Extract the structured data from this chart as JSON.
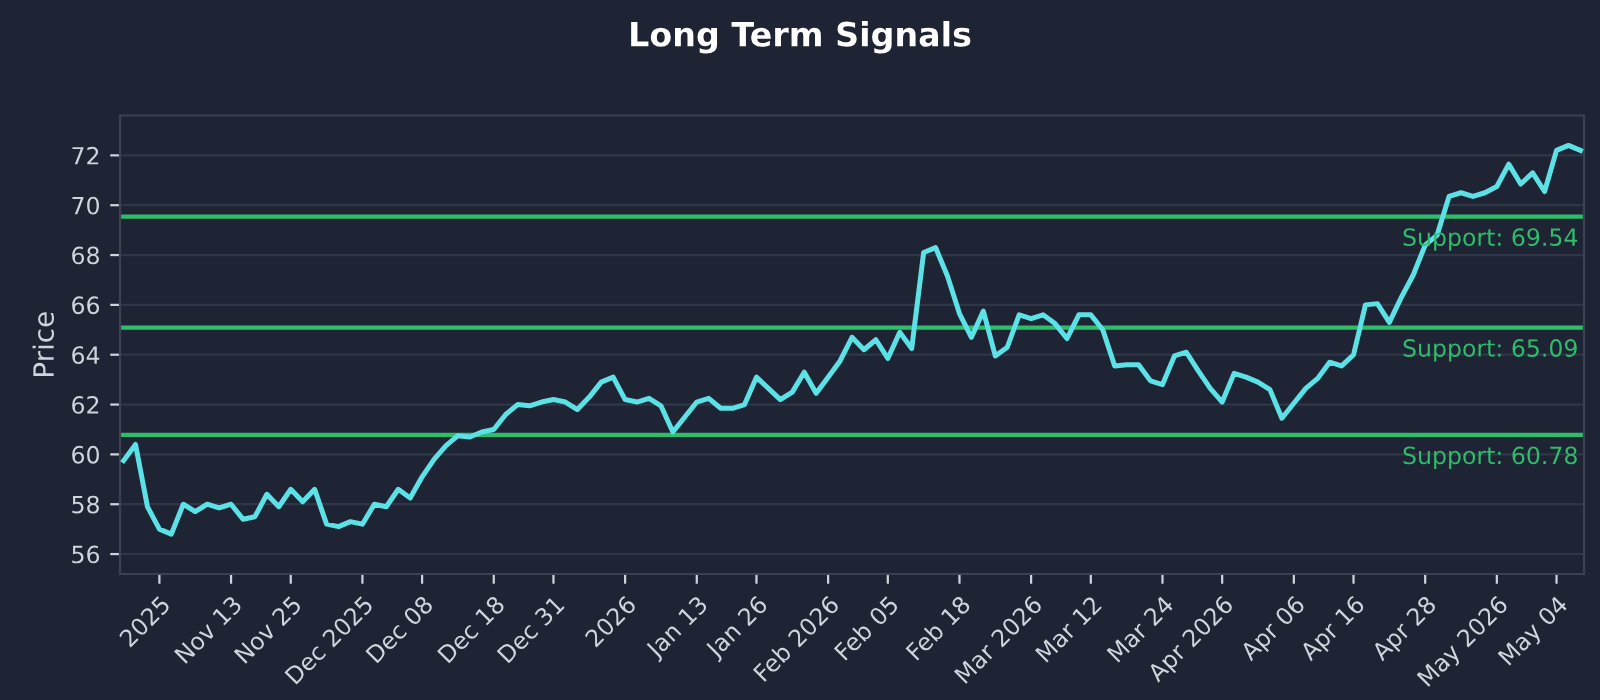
{
  "chart_data": {
    "type": "line",
    "title": "Long Term Signals",
    "ylabel": "Price",
    "categories": [
      null,
      null,
      null,
      "2025",
      null,
      null,
      null,
      null,
      null,
      "Nov 13",
      null,
      null,
      null,
      null,
      "Nov 25",
      null,
      null,
      null,
      null,
      null,
      "Dec 2025",
      null,
      null,
      null,
      null,
      "Dec 08",
      null,
      null,
      null,
      null,
      null,
      "Dec 18",
      null,
      null,
      null,
      null,
      "Dec 31",
      null,
      null,
      null,
      null,
      null,
      "2026",
      null,
      null,
      null,
      null,
      null,
      "Jan 13",
      null,
      null,
      null,
      null,
      "Jan 26",
      null,
      null,
      null,
      null,
      null,
      "Feb 2026",
      null,
      null,
      null,
      null,
      "Feb 05",
      null,
      null,
      null,
      null,
      null,
      "Feb 18",
      null,
      null,
      null,
      null,
      null,
      "Mar 2026",
      null,
      null,
      null,
      null,
      "Mar 12",
      null,
      null,
      null,
      null,
      null,
      "Mar 24",
      null,
      null,
      null,
      null,
      "Apr 2026",
      null,
      null,
      null,
      null,
      null,
      "Apr 06",
      null,
      null,
      null,
      null,
      "Apr 16",
      null,
      null,
      null,
      null,
      null,
      "Apr 28",
      null,
      null,
      null,
      null,
      null,
      "May 2026",
      null,
      null,
      null,
      null,
      "May 04",
      null,
      null
    ],
    "series": [
      {
        "color": "#5ce1e6",
        "values": [
          59.75,
          60.4,
          57.9,
          57.0,
          56.8,
          58.0,
          57.7,
          58.0,
          57.85,
          58.0,
          57.4,
          57.5,
          58.4,
          57.9,
          58.6,
          58.1,
          58.6,
          57.2,
          57.1,
          57.3,
          57.2,
          58.0,
          57.9,
          58.6,
          58.25,
          59.1,
          59.8,
          60.35,
          60.75,
          60.7,
          60.9,
          61.0,
          61.6,
          62.0,
          61.95,
          62.1,
          62.2,
          62.1,
          61.8,
          62.3,
          62.9,
          63.1,
          62.2,
          62.1,
          62.25,
          61.95,
          60.9,
          61.5,
          62.1,
          62.25,
          61.85,
          61.85,
          62.0,
          63.1,
          62.65,
          62.2,
          62.5,
          63.3,
          62.45,
          63.1,
          63.75,
          64.7,
          64.2,
          64.6,
          63.85,
          64.9,
          64.25,
          68.1,
          68.3,
          67.15,
          65.65,
          64.7,
          65.75,
          63.95,
          64.3,
          65.6,
          65.45,
          65.6,
          65.25,
          64.65,
          65.6,
          65.6,
          65.0,
          63.55,
          63.6,
          63.6,
          62.95,
          62.8,
          63.95,
          64.1,
          63.35,
          62.65,
          62.1,
          63.25,
          63.1,
          62.9,
          62.6,
          61.45,
          62.05,
          62.65,
          63.05,
          63.7,
          63.55,
          64.0,
          66.0,
          66.05,
          65.3,
          66.3,
          67.2,
          68.4,
          68.8,
          70.35,
          70.5,
          70.35,
          70.5,
          70.75,
          71.65,
          70.85,
          71.3,
          70.55,
          72.2,
          72.4,
          72.2
        ]
      }
    ],
    "ylim": [
      55.2,
      73.6
    ],
    "yticks": [
      56,
      58,
      60,
      62,
      64,
      66,
      68,
      70,
      72
    ],
    "grid": "y",
    "marker": "none",
    "line_style": "solid",
    "ref_lines": [
      {
        "axis": "y",
        "value": 69.54,
        "label": "Support: 69.54",
        "color": "#2ebd6b"
      },
      {
        "axis": "y",
        "value": 65.09,
        "label": "Support: 65.09",
        "color": "#2ebd6b"
      },
      {
        "axis": "y",
        "value": 60.78,
        "label": "Support: 60.78",
        "color": "#2ebd6b"
      }
    ]
  }
}
